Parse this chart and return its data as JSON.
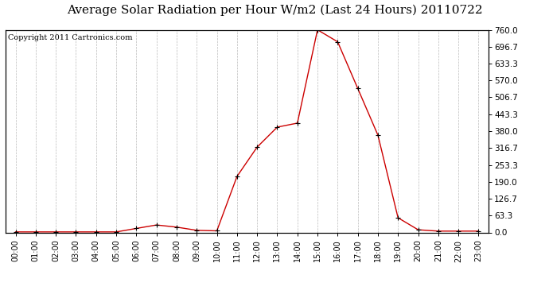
{
  "title": "Average Solar Radiation per Hour W/m2 (Last 24 Hours) 20110722",
  "copyright": "Copyright 2011 Cartronics.com",
  "hours": [
    "00:00",
    "01:00",
    "02:00",
    "03:00",
    "04:00",
    "05:00",
    "06:00",
    "07:00",
    "08:00",
    "09:00",
    "10:00",
    "11:00",
    "12:00",
    "13:00",
    "14:00",
    "15:00",
    "16:00",
    "17:00",
    "18:00",
    "19:00",
    "20:00",
    "21:00",
    "22:00",
    "23:00"
  ],
  "values": [
    2,
    2,
    2,
    2,
    2,
    2,
    15,
    28,
    20,
    8,
    6,
    210,
    320,
    395,
    410,
    760,
    715,
    540,
    365,
    55,
    10,
    5,
    5,
    5
  ],
  "line_color": "#cc0000",
  "marker": "+",
  "background_color": "#ffffff",
  "grid_color": "#bbbbbb",
  "ylim": [
    0,
    760
  ],
  "yticks": [
    0.0,
    63.3,
    126.7,
    190.0,
    253.3,
    316.7,
    380.0,
    443.3,
    506.7,
    570.0,
    633.3,
    696.7,
    760.0
  ],
  "title_fontsize": 11,
  "copyright_fontsize": 7
}
